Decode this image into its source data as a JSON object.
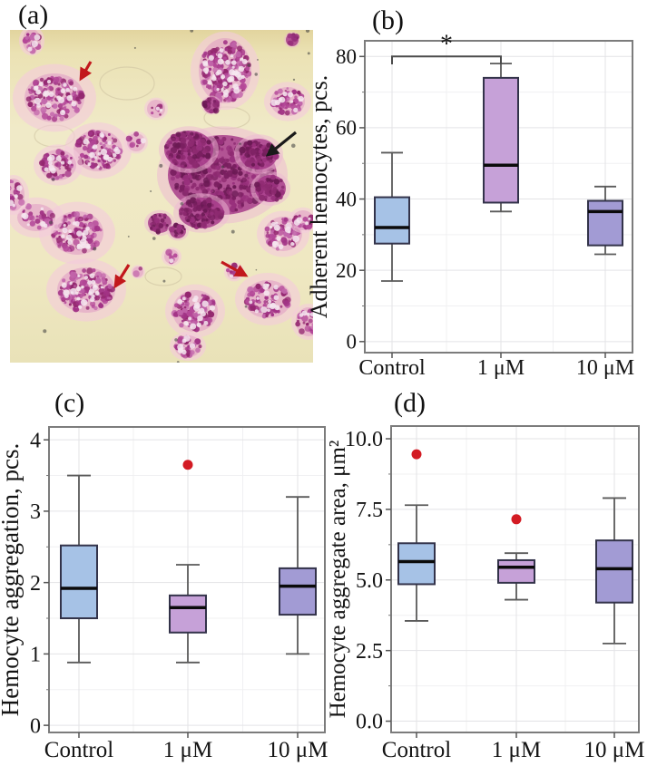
{
  "micrograph": {
    "panel_label": "(a)",
    "background_color": "#efe8c4",
    "stain_color": "#a23386",
    "annotations": [
      {
        "name": "red-arrow",
        "color": "#c2181c",
        "count": 3
      },
      {
        "name": "black-arrow",
        "color": "#1a1a1a",
        "count": 1
      }
    ]
  },
  "style": {
    "background": "#ffffff",
    "box_stroke": "#33334a",
    "median_color": "#0b0b0b",
    "whisker_color": "#5a5a5a",
    "outlier_color": "#d31b23",
    "grid_major": "#e3e3e6",
    "grid_minor": "#f0f0f2",
    "panel_border": "#7c7c7c",
    "text_color": "#141414",
    "significance_color": "#4a4a4a"
  },
  "chart_data": [
    {
      "panel_label": "(b)",
      "type": "boxplot",
      "ylabel": "Adherent hemocytes, pcs.",
      "categories": [
        "Control",
        "1 μM",
        "10 μM"
      ],
      "yticks": [
        0,
        20,
        40,
        60,
        80
      ],
      "ytick_labels": [
        "0",
        "20",
        "40",
        "60",
        "80"
      ],
      "minor_gridlines": [
        10,
        30,
        50,
        70
      ],
      "ylim": [
        -3.1,
        84.4
      ],
      "boxes": [
        {
          "category": "Control",
          "whisker_low": 17,
          "q1": 27.5,
          "median": 32,
          "q3": 40.5,
          "whisker_high": 53,
          "fill": "#a6c2e6",
          "outliers": []
        },
        {
          "category": "1 μM",
          "whisker_low": 36.5,
          "q1": 39,
          "median": 49.5,
          "q3": 74,
          "whisker_high": 78,
          "fill": "#c6a1d8",
          "outliers": []
        },
        {
          "category": "10 μM",
          "whisker_low": 24.5,
          "q1": 27,
          "median": 36.5,
          "q3": 39.5,
          "whisker_high": 43.5,
          "fill": "#a29bd4",
          "outliers": []
        }
      ],
      "significance": {
        "between": [
          "Control",
          "1 μM"
        ],
        "label": "*",
        "y": 80,
        "drop": 2.2
      }
    },
    {
      "panel_label": "(c)",
      "type": "boxplot",
      "ylabel": "Hemocyte aggregation, pcs.",
      "categories": [
        "Control",
        "1 μM",
        "10 μM"
      ],
      "yticks": [
        0,
        1,
        2,
        3,
        4
      ],
      "ytick_labels": [
        "0",
        "1",
        "2",
        "3",
        "4"
      ],
      "minor_gridlines": [
        0.5,
        1.5,
        2.5,
        3.5
      ],
      "ylim": [
        -0.1,
        4.18
      ],
      "boxes": [
        {
          "category": "Control",
          "whisker_low": 0.88,
          "q1": 1.5,
          "median": 1.92,
          "q3": 2.52,
          "whisker_high": 3.5,
          "fill": "#a6c2e6",
          "outliers": []
        },
        {
          "category": "1 μM",
          "whisker_low": 0.88,
          "q1": 1.3,
          "median": 1.65,
          "q3": 1.82,
          "whisker_high": 2.25,
          "fill": "#c6a1d8",
          "outliers": [
            3.65
          ]
        },
        {
          "category": "10 μM",
          "whisker_low": 1.0,
          "q1": 1.55,
          "median": 1.95,
          "q3": 2.2,
          "whisker_high": 3.2,
          "fill": "#a29bd4",
          "outliers": []
        }
      ],
      "significance": null
    },
    {
      "panel_label": "(d)",
      "type": "boxplot",
      "ylabel": "Hemocyte aggregate area, μm²",
      "categories": [
        "Control",
        "1 μM",
        "10 μM"
      ],
      "yticks": [
        0,
        2.5,
        5,
        7.5,
        10
      ],
      "ytick_labels": [
        "0.0",
        "2.5",
        "5.0",
        "7.5",
        "10.0"
      ],
      "minor_gridlines": [
        1.25,
        3.75,
        6.25,
        8.75
      ],
      "ylim": [
        -0.4,
        10.45
      ],
      "boxes": [
        {
          "category": "Control",
          "whisker_low": 3.55,
          "q1": 4.85,
          "median": 5.65,
          "q3": 6.3,
          "whisker_high": 7.65,
          "fill": "#a6c2e6",
          "outliers": [
            9.45
          ]
        },
        {
          "category": "1 μM",
          "whisker_low": 4.3,
          "q1": 4.9,
          "median": 5.45,
          "q3": 5.7,
          "whisker_high": 5.95,
          "fill": "#c6a1d8",
          "outliers": [
            7.15
          ]
        },
        {
          "category": "10 μM",
          "whisker_low": 2.75,
          "q1": 4.2,
          "median": 5.4,
          "q3": 6.4,
          "whisker_high": 7.9,
          "fill": "#a29bd4",
          "outliers": []
        }
      ],
      "significance": null
    }
  ]
}
